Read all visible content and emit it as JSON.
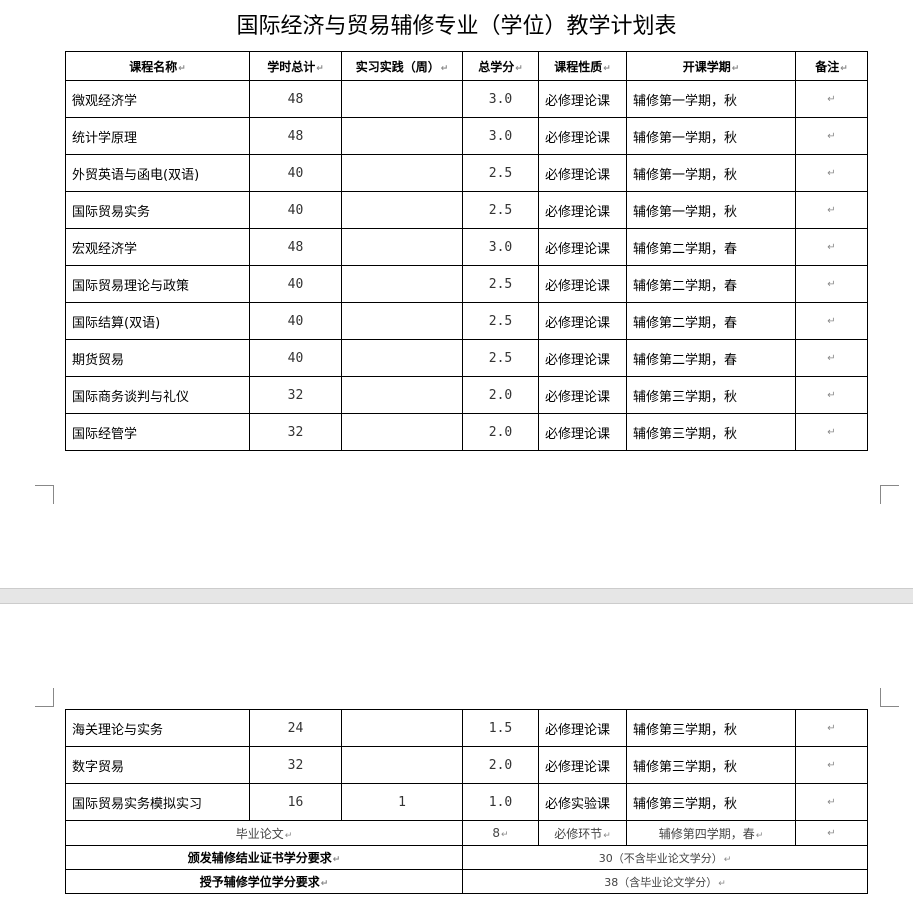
{
  "title": "国际经济与贸易辅修专业（学位）教学计划表",
  "headers": [
    "课程名称",
    "学时总计",
    "实习实践（周）",
    "总学分",
    "课程性质",
    "开课学期",
    "备注"
  ],
  "rows_page1": [
    {
      "name": "微观经济学",
      "hours": "48",
      "practice": "",
      "credits": "3.0",
      "type": "必修理论课",
      "term": "辅修第一学期，秋"
    },
    {
      "name": "统计学原理",
      "hours": "48",
      "practice": "",
      "credits": "3.0",
      "type": "必修理论课",
      "term": "辅修第一学期，秋"
    },
    {
      "name": "外贸英语与函电(双语)",
      "hours": "40",
      "practice": "",
      "credits": "2.5",
      "type": "必修理论课",
      "term": "辅修第一学期，秋"
    },
    {
      "name": "国际贸易实务",
      "hours": "40",
      "practice": "",
      "credits": "2.5",
      "type": "必修理论课",
      "term": "辅修第一学期，秋"
    },
    {
      "name": "宏观经济学",
      "hours": "48",
      "practice": "",
      "credits": "3.0",
      "type": "必修理论课",
      "term": "辅修第二学期，春"
    },
    {
      "name": "国际贸易理论与政策",
      "hours": "40",
      "practice": "",
      "credits": "2.5",
      "type": "必修理论课",
      "term": "辅修第二学期，春"
    },
    {
      "name": "国际结算(双语)",
      "hours": "40",
      "practice": "",
      "credits": "2.5",
      "type": "必修理论课",
      "term": "辅修第二学期，春"
    },
    {
      "name": "期货贸易",
      "hours": "40",
      "practice": "",
      "credits": "2.5",
      "type": "必修理论课",
      "term": "辅修第二学期，春"
    },
    {
      "name": "国际商务谈判与礼仪",
      "hours": "32",
      "practice": "",
      "credits": "2.0",
      "type": "必修理论课",
      "term": "辅修第三学期，秋"
    },
    {
      "name": "国际经管学",
      "hours": "32",
      "practice": "",
      "credits": "2.0",
      "type": "必修理论课",
      "term": "辅修第三学期，秋"
    }
  ],
  "rows_page2": [
    {
      "name": "海关理论与实务",
      "hours": "24",
      "practice": "",
      "credits": "1.5",
      "type": "必修理论课",
      "term": "辅修第三学期，秋"
    },
    {
      "name": "数字贸易",
      "hours": "32",
      "practice": "",
      "credits": "2.0",
      "type": "必修理论课",
      "term": "辅修第三学期，秋"
    },
    {
      "name": "国际贸易实务模拟实习",
      "hours": "16",
      "practice": "1",
      "credits": "1.0",
      "type": "必修实验课",
      "term": "辅修第三学期，秋"
    }
  ],
  "thesis": {
    "name": "毕业论文",
    "credits": "8",
    "type": "必修环节",
    "term": "辅修第四学期，春"
  },
  "cert_req": {
    "label": "颁发辅修结业证书学分要求",
    "value": "30（不含毕业论文学分）"
  },
  "degree_req": {
    "label": "授予辅修学位学分要求",
    "value": "38（含毕业论文学分）"
  }
}
